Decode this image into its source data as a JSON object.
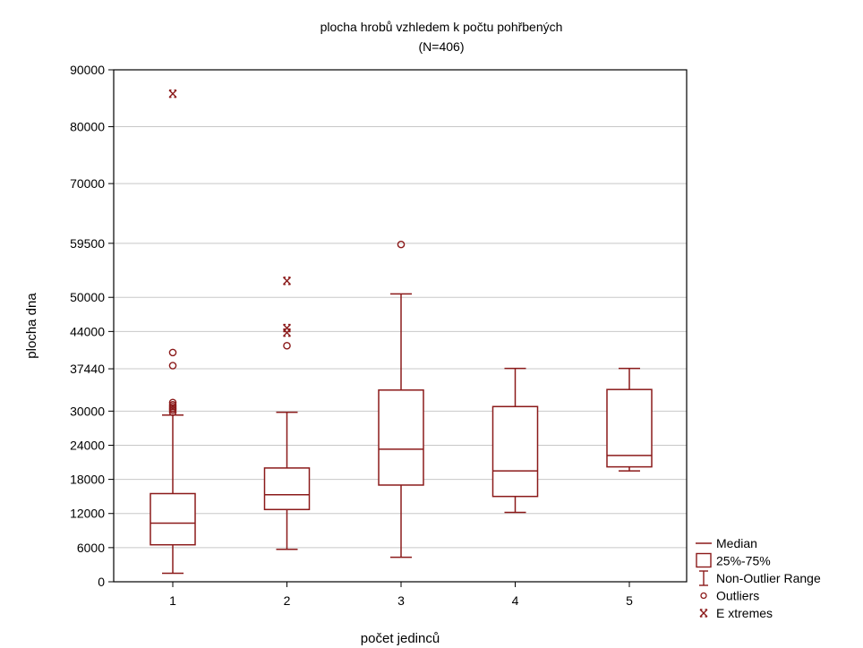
{
  "chart_data": {
    "type": "box",
    "title": "plocha hrobů vzhledem k počtu pohřbených",
    "subtitle": "(N=406)",
    "xlabel": "počet jedinců",
    "ylabel": "plocha dna",
    "categories": [
      "1",
      "2",
      "3",
      "4",
      "5"
    ],
    "y_ticks": [
      {
        "value": 0,
        "label": "0"
      },
      {
        "value": 6000,
        "label": "6000"
      },
      {
        "value": 12000,
        "label": "12000"
      },
      {
        "value": 18000,
        "label": "18000"
      },
      {
        "value": 24000,
        "label": "24000"
      },
      {
        "value": 30000,
        "label": "30000"
      },
      {
        "value": 37440,
        "label": "37440"
      },
      {
        "value": 44000,
        "label": "44000"
      },
      {
        "value": 50000,
        "label": "50000"
      },
      {
        "value": 59500,
        "label": "59500"
      },
      {
        "value": 70000,
        "label": "70000"
      },
      {
        "value": 80000,
        "label": "80000"
      },
      {
        "value": 90000,
        "label": "90000"
      }
    ],
    "ylim": [
      0,
      90000
    ],
    "grid": "horizontal",
    "legend_position": "bottom-right",
    "boxes": [
      {
        "category": "1",
        "whisker_low": 1500,
        "q1": 6500,
        "median": 10300,
        "q3": 15500,
        "whisker_high": 29300,
        "outliers": [
          29800,
          30200,
          30500,
          30800,
          31100,
          31500,
          38000,
          40300
        ],
        "extremes": [
          85800
        ]
      },
      {
        "category": "2",
        "whisker_low": 5700,
        "q1": 12700,
        "median": 15300,
        "q3": 20000,
        "whisker_high": 29800,
        "outliers": [
          41500
        ],
        "extremes": [
          43800,
          44600,
          52900
        ]
      },
      {
        "category": "3",
        "whisker_low": 4300,
        "q1": 17000,
        "median": 23300,
        "q3": 33700,
        "whisker_high": 50600,
        "outliers": [
          59300
        ],
        "extremes": []
      },
      {
        "category": "4",
        "whisker_low": 12200,
        "q1": 15000,
        "median": 19500,
        "q3": 30800,
        "whisker_high": 37500,
        "outliers": [],
        "extremes": []
      },
      {
        "category": "5",
        "whisker_low": 19500,
        "q1": 20200,
        "median": 22200,
        "q3": 33800,
        "whisker_high": 37500,
        "outliers": [],
        "extremes": []
      }
    ],
    "legend": [
      {
        "symbol": "median",
        "label": "Median"
      },
      {
        "symbol": "box",
        "label": "25%-75%"
      },
      {
        "symbol": "whisker",
        "label": "Non-Outlier Range"
      },
      {
        "symbol": "outlier",
        "label": "Outliers"
      },
      {
        "symbol": "extreme",
        "label": "E xtremes"
      }
    ],
    "colors": {
      "series": "#8b1a1a",
      "grid": "#c8c8c8",
      "axis": "#000000",
      "text": "#000000"
    }
  }
}
